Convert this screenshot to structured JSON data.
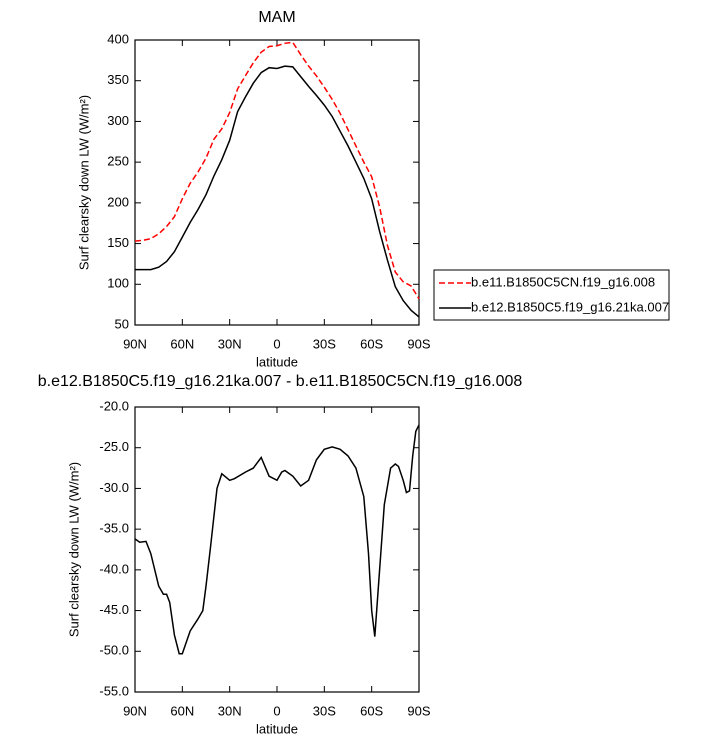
{
  "chart_data": [
    {
      "type": "line",
      "title": "MAM",
      "x_label": "latitude",
      "y_label": "Surf clearsky down LW (W/m²)",
      "x": [
        90,
        85,
        80,
        75,
        70,
        65,
        60,
        55,
        50,
        45,
        40,
        35,
        30,
        25,
        20,
        15,
        10,
        5,
        0,
        -5,
        -10,
        -15,
        -20,
        -25,
        -30,
        -35,
        -40,
        -45,
        -50,
        -55,
        -60,
        -65,
        -70,
        -75,
        -80,
        -85,
        -90
      ],
      "series": [
        {
          "name": "b.e11.B1850C5CN.f19_g16.008",
          "color": "#ff0000",
          "line_style": "dashed",
          "values": [
            153,
            154,
            156,
            162,
            171,
            183,
            205,
            224,
            238,
            255,
            278,
            291,
            311,
            340,
            356,
            372,
            385,
            392,
            393,
            396,
            397,
            382,
            368,
            356,
            342,
            327,
            310,
            290,
            270,
            250,
            232,
            195,
            148,
            115,
            103,
            98,
            82
          ]
        },
        {
          "name": "b.e12.B1850C5.f19_g16.21ka.007",
          "color": "#000000",
          "line_style": "solid",
          "values": [
            118,
            118,
            118,
            121,
            128,
            140,
            158,
            176,
            192,
            210,
            233,
            253,
            277,
            312,
            330,
            347,
            360,
            366,
            365,
            368,
            367,
            355,
            343,
            332,
            320,
            306,
            288,
            270,
            250,
            230,
            205,
            165,
            130,
            97,
            80,
            68,
            60
          ]
        }
      ],
      "xlim": [
        90,
        -90
      ],
      "xticks": [
        {
          "value": 90,
          "label": "90N"
        },
        {
          "value": 60,
          "label": "60N"
        },
        {
          "value": 30,
          "label": "30N"
        },
        0,
        {
          "value": -30,
          "label": "30S"
        },
        {
          "value": -60,
          "label": "60S"
        },
        {
          "value": -90,
          "label": "90S"
        }
      ],
      "ylim": [
        50,
        400
      ],
      "yticks": [
        50,
        100,
        150,
        200,
        250,
        300,
        350,
        400
      ],
      "legend": "right"
    },
    {
      "type": "line",
      "title": "b.e12.B1850C5.f19_g16.21ka.007 - b.e11.B1850C5CN.f19_g16.008",
      "x_label": "latitude",
      "y_label": "Surf clearsky down LW (W/m²)",
      "x": [
        90,
        87,
        83,
        80,
        75,
        72,
        70,
        68,
        65,
        62,
        60,
        55,
        50,
        47,
        45,
        42,
        38,
        35,
        30,
        27,
        20,
        15,
        10,
        5,
        0,
        -3,
        -5,
        -10,
        -15,
        -20,
        -25,
        -30,
        -35,
        -40,
        -45,
        -50,
        -55,
        -58,
        -60,
        -62,
        -65,
        -68,
        -72,
        -75,
        -77,
        -80,
        -82,
        -84,
        -86,
        -88,
        -90
      ],
      "series": [
        {
          "color": "#000000",
          "line_style": "solid",
          "values": [
            -36.2,
            -36.6,
            -36.5,
            -38,
            -42,
            -43,
            -43,
            -44,
            -48,
            -50.3,
            -50.3,
            -47.5,
            -46,
            -45,
            -42,
            -37,
            -30,
            -28.2,
            -29,
            -28.8,
            -28,
            -27.5,
            -26.2,
            -28.5,
            -29,
            -28,
            -27.8,
            -28.5,
            -29.7,
            -29,
            -26.5,
            -25.2,
            -24.9,
            -25.2,
            -26,
            -27.5,
            -31,
            -38,
            -45,
            -48.2,
            -40,
            -32,
            -27.5,
            -27,
            -27.3,
            -29,
            -30.5,
            -30.3,
            -26,
            -23,
            -22.2
          ]
        }
      ],
      "xlim": [
        90,
        -90
      ],
      "xticks": [
        {
          "value": 90,
          "label": "90N"
        },
        {
          "value": 60,
          "label": "60N"
        },
        {
          "value": 30,
          "label": "30N"
        },
        0,
        {
          "value": -30,
          "label": "30S"
        },
        {
          "value": -60,
          "label": "60S"
        },
        {
          "value": -90,
          "label": "90S"
        }
      ],
      "ylim": [
        -55,
        -20
      ],
      "yticks": [
        {
          "value": -55,
          "label": "-55.0"
        },
        {
          "value": -50,
          "label": "-50.0"
        },
        {
          "value": -45,
          "label": "-45.0"
        },
        {
          "value": -40,
          "label": "-40.0"
        },
        {
          "value": -35,
          "label": "-35.0"
        },
        {
          "value": -30,
          "label": "-30.0"
        },
        {
          "value": -25,
          "label": "-25.0"
        },
        {
          "value": -20,
          "label": "-20.0"
        }
      ]
    }
  ]
}
